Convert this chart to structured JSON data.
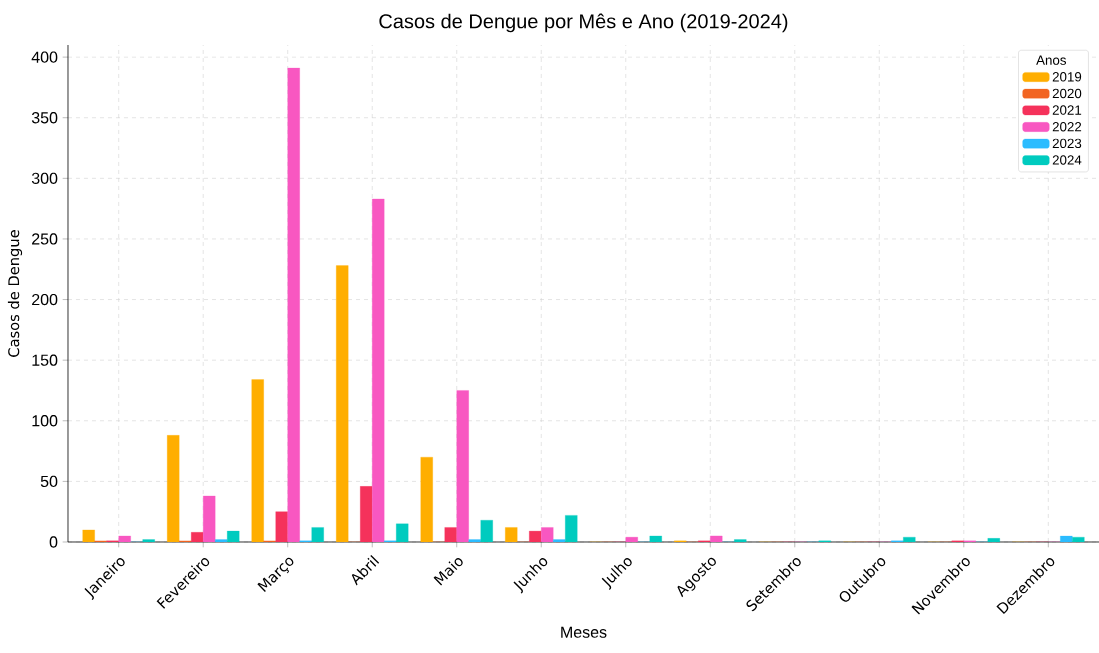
{
  "chart_data": {
    "type": "bar",
    "title": "Casos de Dengue por Mês e Ano (2019-2024)",
    "xlabel": "Meses",
    "ylabel": "Casos de Dengue",
    "legend_title": "Anos",
    "categories": [
      "Janeiro",
      "Fevereiro",
      "Março",
      "Abril",
      "Maio",
      "Junho",
      "Julho",
      "Agosto",
      "Setembro",
      "Outubro",
      "Novembro",
      "Dezembro"
    ],
    "series": [
      {
        "name": "2019",
        "color": "#ffae00",
        "values": [
          10,
          88,
          134,
          228,
          70,
          12,
          0,
          1,
          0,
          0,
          0,
          0
        ]
      },
      {
        "name": "2020",
        "color": "#f26522",
        "values": [
          1,
          1,
          1,
          0,
          0,
          0,
          0,
          0,
          0,
          0,
          0,
          0
        ]
      },
      {
        "name": "2021",
        "color": "#f5325b",
        "values": [
          1,
          8,
          25,
          46,
          12,
          9,
          0,
          1,
          0,
          0,
          1,
          0
        ]
      },
      {
        "name": "2022",
        "color": "#f857c1",
        "values": [
          5,
          38,
          391,
          283,
          125,
          12,
          4,
          5,
          0,
          0,
          1,
          0
        ]
      },
      {
        "name": "2023",
        "color": "#2bbcff",
        "values": [
          0,
          2,
          1,
          1,
          2,
          2,
          0,
          0,
          0,
          1,
          0,
          5
        ]
      },
      {
        "name": "2024",
        "color": "#00cbbf",
        "values": [
          2,
          9,
          12,
          15,
          18,
          22,
          5,
          2,
          1,
          4,
          3,
          4
        ]
      }
    ],
    "ylim": [
      0,
      410
    ],
    "yticks": [
      0,
      50,
      100,
      150,
      200,
      250,
      300,
      350,
      400
    ],
    "grid": true,
    "legend": "top right"
  }
}
